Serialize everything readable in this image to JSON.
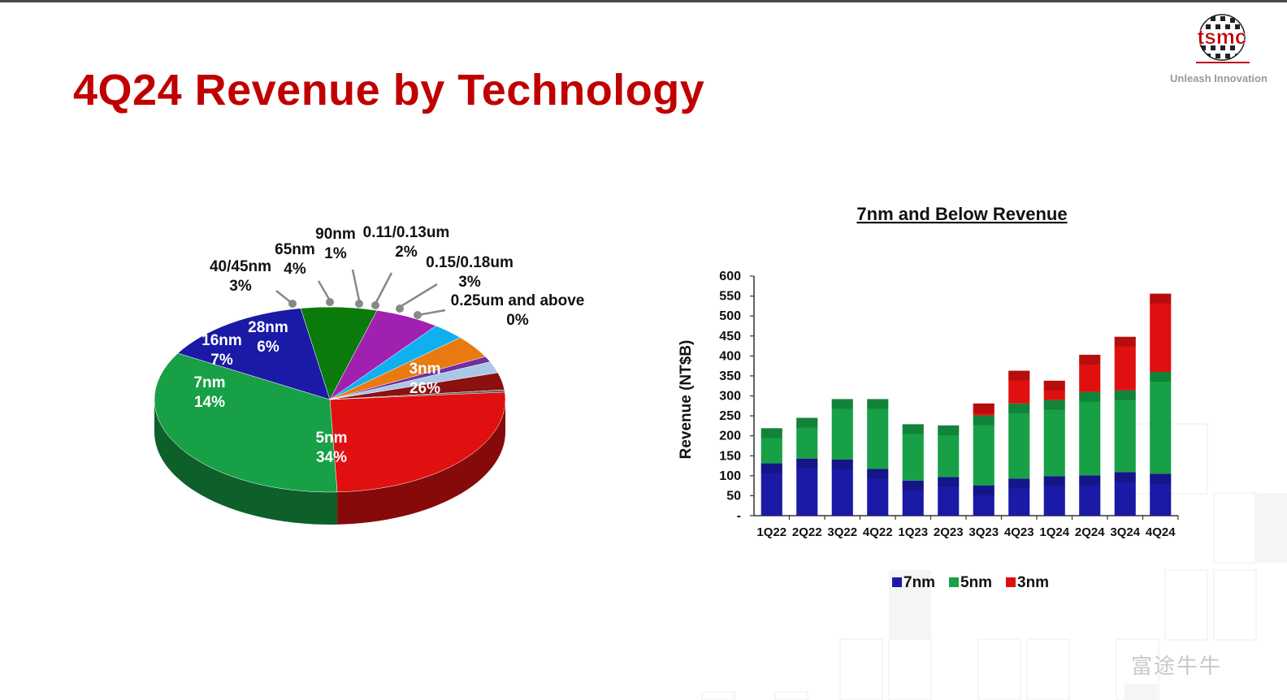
{
  "header": {
    "title": "4Q24 Revenue by Technology",
    "brand": "tsmc",
    "tagline": "Unleash Innovation"
  },
  "watermark": {
    "text": "富途牛牛"
  },
  "colors": {
    "title": "#c00000",
    "n7": "#1a1aa6",
    "n5": "#17a046",
    "n3": "#e01010"
  },
  "chart_data": [
    {
      "type": "pie",
      "labels": [
        "3nm",
        "5nm",
        "7nm",
        "16nm",
        "28nm",
        "40/45nm",
        "65nm",
        "90nm",
        "0.11/0.13um",
        "0.15/0.18um",
        "0.25um and above"
      ],
      "values": [
        26,
        34,
        14,
        7,
        6,
        3,
        4,
        1,
        2,
        3,
        0
      ],
      "value_labels": [
        "26%",
        "34%",
        "14%",
        "7%",
        "6%",
        "3%",
        "4%",
        "1%",
        "2%",
        "3%",
        "0%"
      ],
      "colors": [
        "#e01010",
        "#17a046",
        "#1a1aa6",
        "#0a7a0a",
        "#a020b0",
        "#10b0f0",
        "#e87a10",
        "#7030a0",
        "#a8c8e8",
        "#8b1010",
        "#606060"
      ]
    },
    {
      "type": "bar",
      "stacked": true,
      "title": "7nm and Below Revenue",
      "ylabel": "Revenue (NT$B)",
      "ylim": [
        0,
        600
      ],
      "yticks": [
        "-",
        "50",
        "100",
        "150",
        "200",
        "250",
        "300",
        "350",
        "400",
        "450",
        "500",
        "550",
        "600"
      ],
      "categories": [
        "1Q22",
        "2Q22",
        "3Q22",
        "4Q22",
        "1Q23",
        "2Q23",
        "3Q23",
        "4Q23",
        "1Q24",
        "2Q24",
        "3Q24",
        "4Q24"
      ],
      "series": [
        {
          "name": "7nm",
          "color": "#1a1aa6",
          "values": [
            131,
            143,
            141,
            117,
            88,
            97,
            76,
            93,
            99,
            101,
            109,
            105
          ]
        },
        {
          "name": "5nm",
          "color": "#17a046",
          "values": [
            88,
            102,
            151,
            175,
            141,
            129,
            175,
            188,
            191,
            209,
            205,
            255
          ]
        },
        {
          "name": "3nm",
          "color": "#e01010",
          "values": [
            0,
            0,
            0,
            0,
            0,
            0,
            30,
            82,
            48,
            93,
            134,
            196
          ]
        }
      ],
      "legend": "bottom"
    }
  ]
}
